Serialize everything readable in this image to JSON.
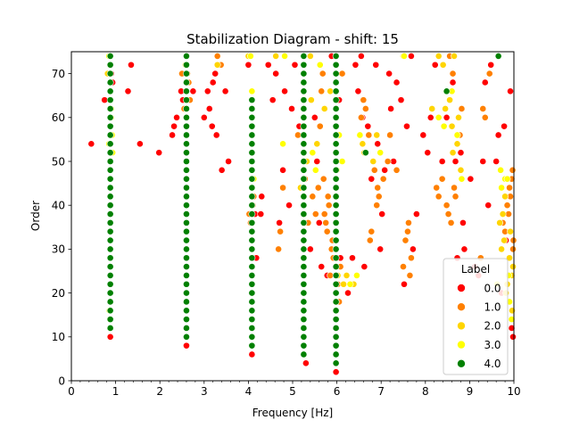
{
  "chart_data": {
    "type": "scatter",
    "title": "Stabilization Diagram - shift: 15",
    "xlabel": "Frequency [Hz]",
    "ylabel": "Order",
    "xlim": [
      0,
      10
    ],
    "ylim": [
      0,
      75
    ],
    "x_ticks": [
      "0",
      "1",
      "2",
      "3",
      "4",
      "5",
      "6",
      "7",
      "8",
      "9",
      "10"
    ],
    "y_ticks": [
      "0",
      "10",
      "20",
      "30",
      "40",
      "50",
      "60",
      "70"
    ],
    "grid": false,
    "legend": {
      "title": "Label",
      "placement": "lower-right",
      "entries": [
        "0.0",
        "1.0",
        "2.0",
        "3.0",
        "4.0"
      ]
    },
    "colors": {
      "0.0": "#ff0000",
      "1.0": "#ff8000",
      "2.0": "#ffd500",
      "3.0": "#ffff00",
      "4.0": "#008000"
    },
    "stable_columns": [
      {
        "label": "4.0",
        "x": 0.88,
        "orders": [
          12,
          74
        ]
      },
      {
        "label": "4.0",
        "x": 2.6,
        "orders": [
          10,
          74
        ]
      },
      {
        "label": "4.0",
        "x": 4.08,
        "orders": [
          8,
          64
        ]
      },
      {
        "label": "4.0",
        "x": 5.25,
        "orders": [
          6,
          74
        ]
      },
      {
        "label": "4.0",
        "x": 5.98,
        "orders": [
          4,
          74
        ]
      }
    ],
    "series": [
      {
        "name": "0.0",
        "points": [
          [
            0.45,
            54
          ],
          [
            0.75,
            64
          ],
          [
            0.9,
            70
          ],
          [
            0.93,
            68
          ],
          [
            0.88,
            10
          ],
          [
            1.35,
            72
          ],
          [
            1.28,
            66
          ],
          [
            1.55,
            54
          ],
          [
            1.98,
            52
          ],
          [
            2.38,
            60
          ],
          [
            2.32,
            58
          ],
          [
            2.28,
            56
          ],
          [
            2.52,
            64
          ],
          [
            2.48,
            66
          ],
          [
            2.6,
            8
          ],
          [
            2.75,
            66
          ],
          [
            3.0,
            60
          ],
          [
            3.08,
            66
          ],
          [
            3.12,
            62
          ],
          [
            3.18,
            58
          ],
          [
            3.2,
            68
          ],
          [
            3.25,
            70
          ],
          [
            3.28,
            56
          ],
          [
            3.4,
            48
          ],
          [
            3.48,
            66
          ],
          [
            3.55,
            50
          ],
          [
            4.0,
            72
          ],
          [
            4.08,
            6
          ],
          [
            4.15,
            38
          ],
          [
            4.18,
            28
          ],
          [
            4.28,
            38
          ],
          [
            4.3,
            42
          ],
          [
            4.45,
            72
          ],
          [
            4.55,
            64
          ],
          [
            4.62,
            70
          ],
          [
            4.7,
            36
          ],
          [
            4.78,
            48
          ],
          [
            4.82,
            66
          ],
          [
            4.92,
            40
          ],
          [
            4.98,
            62
          ],
          [
            5.05,
            72
          ],
          [
            5.15,
            58
          ],
          [
            5.3,
            4
          ],
          [
            5.4,
            30
          ],
          [
            5.5,
            60
          ],
          [
            5.55,
            50
          ],
          [
            5.6,
            36
          ],
          [
            5.65,
            26
          ],
          [
            5.78,
            24
          ],
          [
            5.88,
            74
          ],
          [
            5.98,
            2
          ],
          [
            6.05,
            64
          ],
          [
            6.08,
            28
          ],
          [
            6.25,
            20
          ],
          [
            6.35,
            28
          ],
          [
            6.42,
            72
          ],
          [
            6.48,
            66
          ],
          [
            6.55,
            74
          ],
          [
            6.58,
            60
          ],
          [
            6.62,
            26
          ],
          [
            6.7,
            58
          ],
          [
            6.78,
            46
          ],
          [
            6.88,
            72
          ],
          [
            6.92,
            54
          ],
          [
            6.98,
            30
          ],
          [
            7.02,
            38
          ],
          [
            7.08,
            48
          ],
          [
            7.18,
            70
          ],
          [
            7.22,
            62
          ],
          [
            7.28,
            50
          ],
          [
            7.35,
            68
          ],
          [
            7.45,
            64
          ],
          [
            7.52,
            22
          ],
          [
            7.58,
            58
          ],
          [
            7.68,
            74
          ],
          [
            7.72,
            30
          ],
          [
            7.8,
            38
          ],
          [
            7.95,
            56
          ],
          [
            8.05,
            52
          ],
          [
            8.12,
            60
          ],
          [
            8.22,
            72
          ],
          [
            8.38,
            50
          ],
          [
            8.48,
            60
          ],
          [
            8.55,
            64
          ],
          [
            8.62,
            68
          ],
          [
            8.68,
            50
          ],
          [
            8.72,
            28
          ],
          [
            8.8,
            52
          ],
          [
            8.85,
            36
          ],
          [
            8.88,
            30
          ],
          [
            9.02,
            46
          ],
          [
            9.12,
            26
          ],
          [
            9.2,
            24
          ],
          [
            9.3,
            50
          ],
          [
            9.35,
            68
          ],
          [
            9.42,
            40
          ],
          [
            9.48,
            72
          ],
          [
            9.6,
            50
          ],
          [
            9.65,
            56
          ],
          [
            9.72,
            20
          ],
          [
            9.78,
            58
          ],
          [
            9.82,
            32
          ],
          [
            9.92,
            66
          ],
          [
            9.95,
            12
          ],
          [
            9.98,
            10
          ]
        ]
      },
      {
        "name": "1.0",
        "points": [
          [
            2.5,
            70
          ],
          [
            2.55,
            62
          ],
          [
            2.62,
            70
          ],
          [
            2.65,
            68
          ],
          [
            2.68,
            64
          ],
          [
            3.3,
            74
          ],
          [
            3.38,
            72
          ],
          [
            4.02,
            38
          ],
          [
            4.05,
            36
          ],
          [
            4.1,
            40
          ],
          [
            4.12,
            42
          ],
          [
            4.68,
            30
          ],
          [
            4.72,
            34
          ],
          [
            4.78,
            44
          ],
          [
            5.12,
            56
          ],
          [
            5.28,
            46
          ],
          [
            5.35,
            36
          ],
          [
            5.45,
            42
          ],
          [
            5.52,
            38
          ],
          [
            5.58,
            44
          ],
          [
            5.62,
            58
          ],
          [
            5.65,
            66
          ],
          [
            5.68,
            70
          ],
          [
            5.7,
            46
          ],
          [
            5.72,
            38
          ],
          [
            5.75,
            36
          ],
          [
            5.78,
            34
          ],
          [
            5.8,
            42
          ],
          [
            5.82,
            40
          ],
          [
            5.85,
            24
          ],
          [
            5.88,
            30
          ],
          [
            5.9,
            32
          ],
          [
            5.92,
            28
          ],
          [
            6.02,
            22
          ],
          [
            6.05,
            18
          ],
          [
            6.08,
            26
          ],
          [
            6.12,
            70
          ],
          [
            6.55,
            60
          ],
          [
            6.6,
            64
          ],
          [
            6.65,
            62
          ],
          [
            6.72,
            56
          ],
          [
            6.75,
            32
          ],
          [
            6.78,
            34
          ],
          [
            6.85,
            48
          ],
          [
            6.9,
            40
          ],
          [
            6.92,
            44
          ],
          [
            6.95,
            42
          ],
          [
            7.05,
            46
          ],
          [
            7.15,
            50
          ],
          [
            7.2,
            56
          ],
          [
            7.35,
            48
          ],
          [
            7.5,
            26
          ],
          [
            7.55,
            32
          ],
          [
            7.6,
            34
          ],
          [
            7.62,
            36
          ],
          [
            7.65,
            24
          ],
          [
            7.68,
            28
          ],
          [
            8.25,
            44
          ],
          [
            8.3,
            42
          ],
          [
            8.38,
            46
          ],
          [
            8.48,
            40
          ],
          [
            8.52,
            38
          ],
          [
            8.55,
            74
          ],
          [
            8.58,
            36
          ],
          [
            8.62,
            70
          ],
          [
            8.65,
            44
          ],
          [
            8.68,
            42
          ],
          [
            8.72,
            56
          ],
          [
            8.78,
            56
          ],
          [
            8.82,
            62
          ],
          [
            9.25,
            28
          ],
          [
            9.3,
            62
          ],
          [
            9.35,
            60
          ],
          [
            9.45,
            70
          ],
          [
            9.75,
            36
          ],
          [
            9.8,
            34
          ],
          [
            9.85,
            40
          ],
          [
            9.88,
            38
          ],
          [
            9.9,
            44
          ],
          [
            9.92,
            42
          ],
          [
            9.95,
            46
          ],
          [
            9.97,
            48
          ],
          [
            9.98,
            30
          ],
          [
            9.99,
            32
          ]
        ]
      },
      {
        "name": "2.0",
        "points": [
          [
            0.82,
            70
          ],
          [
            2.58,
            72
          ],
          [
            3.3,
            72
          ],
          [
            4.0,
            74
          ],
          [
            4.08,
            40
          ],
          [
            4.62,
            74
          ],
          [
            5.18,
            44
          ],
          [
            5.32,
            50
          ],
          [
            5.4,
            74
          ],
          [
            5.42,
            64
          ],
          [
            5.55,
            54
          ],
          [
            5.72,
            62
          ],
          [
            5.85,
            66
          ],
          [
            6.02,
            24
          ],
          [
            6.15,
            22
          ],
          [
            6.22,
            24
          ],
          [
            6.38,
            22
          ],
          [
            6.58,
            54
          ],
          [
            6.62,
            52
          ],
          [
            6.82,
            50
          ],
          [
            6.9,
            56
          ],
          [
            7.5,
            74
          ],
          [
            8.15,
            62
          ],
          [
            8.3,
            74
          ],
          [
            8.4,
            72
          ],
          [
            8.45,
            62
          ],
          [
            8.55,
            64
          ],
          [
            8.6,
            58
          ],
          [
            8.62,
            52
          ],
          [
            8.65,
            74
          ],
          [
            8.72,
            54
          ],
          [
            8.75,
            60
          ],
          [
            8.8,
            48
          ],
          [
            9.68,
            36
          ],
          [
            9.72,
            30
          ],
          [
            9.75,
            38
          ],
          [
            9.78,
            32
          ],
          [
            9.8,
            42
          ],
          [
            9.82,
            20
          ],
          [
            9.85,
            22
          ],
          [
            9.9,
            28
          ],
          [
            9.92,
            34
          ],
          [
            9.95,
            24
          ],
          [
            9.96,
            16
          ],
          [
            9.98,
            26
          ]
        ]
      },
      {
        "name": "3.0",
        "points": [
          [
            0.85,
            74
          ],
          [
            0.87,
            72
          ],
          [
            0.88,
            66
          ],
          [
            0.9,
            60
          ],
          [
            0.92,
            56
          ],
          [
            0.93,
            52
          ],
          [
            0.87,
            14
          ],
          [
            0.86,
            16
          ],
          [
            0.88,
            18
          ],
          [
            0.9,
            62
          ],
          [
            0.85,
            54
          ],
          [
            4.05,
            74
          ],
          [
            4.08,
            66
          ],
          [
            4.12,
            46
          ],
          [
            4.78,
            54
          ],
          [
            4.82,
            74
          ],
          [
            5.45,
            52
          ],
          [
            5.52,
            48
          ],
          [
            5.62,
            72
          ],
          [
            6.0,
            48
          ],
          [
            6.05,
            56
          ],
          [
            6.12,
            50
          ],
          [
            6.3,
            22
          ],
          [
            6.45,
            24
          ],
          [
            6.52,
            56
          ],
          [
            6.98,
            52
          ],
          [
            7.52,
            74
          ],
          [
            8.3,
            60
          ],
          [
            8.42,
            58
          ],
          [
            8.6,
            66
          ],
          [
            8.72,
            56
          ],
          [
            8.82,
            46
          ],
          [
            9.62,
            22
          ],
          [
            9.7,
            48
          ],
          [
            9.72,
            44
          ],
          [
            9.8,
            46
          ],
          [
            9.85,
            46
          ],
          [
            9.88,
            24
          ],
          [
            9.9,
            18
          ],
          [
            9.95,
            14
          ]
        ]
      },
      {
        "name": "4.0",
        "points": [
          [
            6.65,
            52
          ],
          [
            8.48,
            66
          ],
          [
            9.65,
            74
          ]
        ]
      }
    ]
  }
}
